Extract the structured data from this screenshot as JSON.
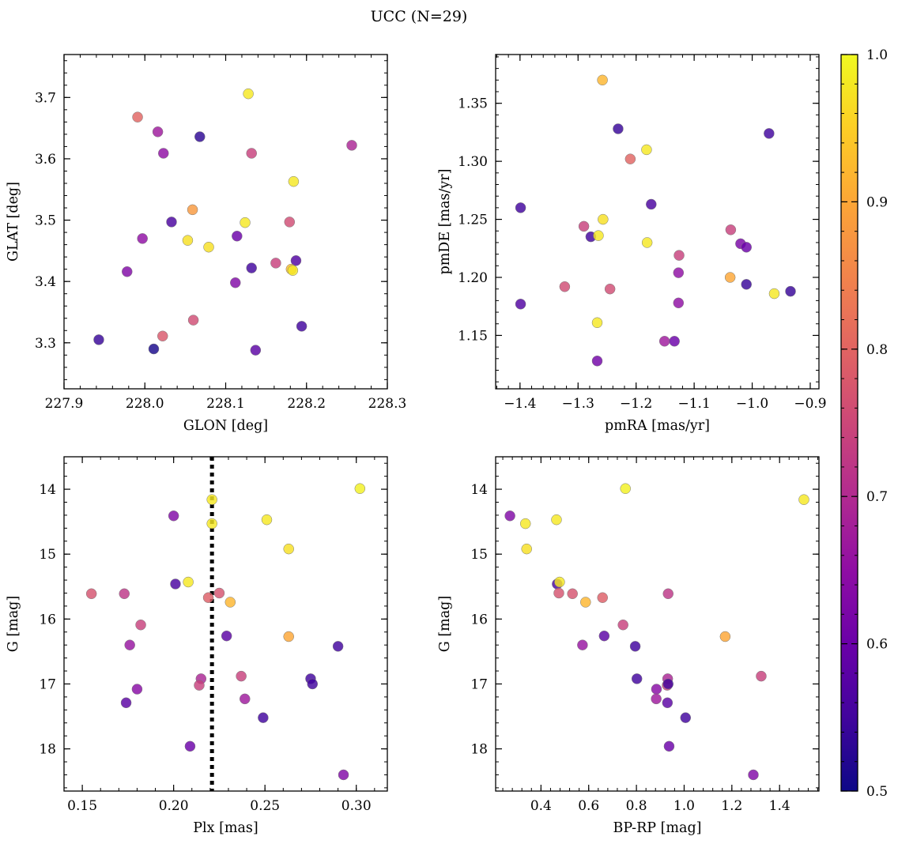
{
  "title": "UCC (N=29)",
  "colorbar": {
    "min": 0.5,
    "max": 1.0,
    "ticks": [
      0.5,
      0.6,
      0.7,
      0.8,
      0.9,
      1.0
    ],
    "tick_labels": [
      "0.5",
      "0.6",
      "0.7",
      "0.8",
      "0.9",
      "1.0"
    ],
    "colormap": "plasma"
  },
  "chart_data": [
    {
      "type": "scatter",
      "name": "GLON-GLAT",
      "xlabel": "GLON [deg]",
      "ylabel": "GLAT [deg]",
      "xlim": [
        227.9,
        228.3
      ],
      "ylim": [
        3.225,
        3.77
      ],
      "y_inverted": false,
      "xticks": [
        227.9,
        228.0,
        228.1,
        228.2,
        228.3
      ],
      "xtick_labels": [
        "227.9",
        "228.0",
        "228.1",
        "228.2",
        "228.3"
      ],
      "yticks": [
        3.3,
        3.4,
        3.5,
        3.6,
        3.7
      ],
      "ytick_labels": [
        "3.3",
        "3.4",
        "3.5",
        "3.6",
        "3.7"
      ],
      "x": [
        228.128,
        227.991,
        228.016,
        228.023,
        228.068,
        228.132,
        228.256,
        228.184,
        228.059,
        228.033,
        228.124,
        228.179,
        227.997,
        228.053,
        228.079,
        228.114,
        228.132,
        228.162,
        228.187,
        228.181,
        228.183,
        227.978,
        228.112,
        228.022,
        228.06,
        227.943,
        228.011,
        228.137,
        228.194
      ],
      "y": [
        3.706,
        3.668,
        3.644,
        3.609,
        3.636,
        3.609,
        3.622,
        3.563,
        3.517,
        3.497,
        3.496,
        3.497,
        3.47,
        3.467,
        3.456,
        3.474,
        3.422,
        3.43,
        3.434,
        3.42,
        3.418,
        3.416,
        3.398,
        3.311,
        3.337,
        3.305,
        3.29,
        3.288,
        3.327
      ],
      "c": [
        0.98,
        0.8,
        0.67,
        0.65,
        0.53,
        0.74,
        0.69,
        0.98,
        0.88,
        0.56,
        0.98,
        0.76,
        0.65,
        0.97,
        0.97,
        0.6,
        0.55,
        0.74,
        0.57,
        0.93,
        0.98,
        0.63,
        0.63,
        0.78,
        0.76,
        0.54,
        0.51,
        0.58,
        0.55
      ]
    },
    {
      "type": "scatter",
      "name": "pmRA-pmDE",
      "xlabel": "pmRA [mas/yr]",
      "ylabel": "pmDE [mas/yr]",
      "xlim": [
        -1.442,
        -0.885
      ],
      "ylim": [
        1.104,
        1.392
      ],
      "y_inverted": false,
      "xticks": [
        -1.4,
        -1.3,
        -1.2,
        -1.1,
        -1.0,
        -0.9
      ],
      "xtick_labels": [
        "−1.4",
        "−1.3",
        "−1.2",
        "−1.1",
        "−1.0",
        "−0.9"
      ],
      "yticks": [
        1.15,
        1.2,
        1.25,
        1.3,
        1.35
      ],
      "ytick_labels": [
        "1.15",
        "1.20",
        "1.25",
        "1.30",
        "1.35"
      ],
      "x": [
        -1.258,
        -1.231,
        -0.971,
        -1.182,
        -1.21,
        -1.399,
        -1.174,
        -1.257,
        -1.29,
        -1.278,
        -1.265,
        -1.181,
        -1.037,
        -1.02,
        -1.01,
        -1.126,
        -1.323,
        -1.245,
        -1.127,
        -1.038,
        -1.01,
        -0.962,
        -0.934,
        -1.399,
        -1.127,
        -1.267,
        -1.151,
        -1.134,
        -1.267
      ],
      "y": [
        1.37,
        1.328,
        1.324,
        1.31,
        1.302,
        1.26,
        1.263,
        1.25,
        1.244,
        1.235,
        1.236,
        1.23,
        1.241,
        1.229,
        1.226,
        1.219,
        1.192,
        1.19,
        1.204,
        1.2,
        1.194,
        1.186,
        1.188,
        1.177,
        1.178,
        1.161,
        1.145,
        1.145,
        1.128
      ],
      "c": [
        0.92,
        0.54,
        0.55,
        0.98,
        0.8,
        0.55,
        0.56,
        0.97,
        0.74,
        0.55,
        0.98,
        0.98,
        0.74,
        0.62,
        0.6,
        0.74,
        0.76,
        0.76,
        0.65,
        0.9,
        0.54,
        0.98,
        0.54,
        0.57,
        0.65,
        0.98,
        0.67,
        0.6,
        0.61
      ]
    },
    {
      "type": "scatter",
      "name": "Plx-G",
      "xlabel": "Plx [mas]",
      "ylabel": "G [mag]",
      "xlim": [
        0.14,
        0.317
      ],
      "ylim": [
        18.65,
        13.5
      ],
      "y_inverted": true,
      "xticks": [
        0.15,
        0.2,
        0.25,
        0.3
      ],
      "xtick_labels": [
        "0.15",
        "0.20",
        "0.25",
        "0.30"
      ],
      "yticks": [
        14,
        15,
        16,
        17,
        18
      ],
      "ytick_labels": [
        "14",
        "15",
        "16",
        "17",
        "18"
      ],
      "vline": {
        "x": 0.221,
        "style": "dotted"
      },
      "x": [
        0.302,
        0.221,
        0.221,
        0.2,
        0.251,
        0.263,
        0.208,
        0.201,
        0.155,
        0.173,
        0.225,
        0.219,
        0.231,
        0.182,
        0.263,
        0.229,
        0.176,
        0.29,
        0.215,
        0.214,
        0.237,
        0.275,
        0.276,
        0.18,
        0.239,
        0.174,
        0.249,
        0.209,
        0.293
      ],
      "y": [
        13.99,
        14.16,
        14.53,
        14.41,
        14.47,
        14.92,
        15.43,
        15.46,
        15.61,
        15.61,
        15.6,
        15.67,
        15.74,
        16.09,
        16.27,
        16.26,
        16.4,
        16.42,
        16.92,
        17.02,
        16.88,
        16.92,
        17.0,
        17.08,
        17.23,
        17.29,
        17.52,
        17.96,
        18.4
      ],
      "c": [
        0.99,
        0.98,
        0.98,
        0.63,
        0.98,
        0.97,
        0.98,
        0.56,
        0.77,
        0.72,
        0.77,
        0.79,
        0.92,
        0.74,
        0.9,
        0.58,
        0.66,
        0.55,
        0.69,
        0.74,
        0.74,
        0.55,
        0.55,
        0.64,
        0.67,
        0.58,
        0.55,
        0.6,
        0.63
      ]
    },
    {
      "type": "scatter",
      "name": "BPRP-G",
      "xlabel": "BP-RP [mag]",
      "ylabel": "G [mag]",
      "xlim": [
        0.21,
        1.565
      ],
      "ylim": [
        18.65,
        13.5
      ],
      "y_inverted": true,
      "xticks": [
        0.4,
        0.6,
        0.8,
        1.0,
        1.2,
        1.4
      ],
      "xtick_labels": [
        "0.4",
        "0.6",
        "0.8",
        "1.0",
        "1.2",
        "1.4"
      ],
      "yticks": [
        14,
        15,
        16,
        17,
        18
      ],
      "ytick_labels": [
        "14",
        "15",
        "16",
        "17",
        "18"
      ],
      "x": [
        0.754,
        1.502,
        0.27,
        0.335,
        0.465,
        0.34,
        0.468,
        0.478,
        0.475,
        0.532,
        0.587,
        0.658,
        0.933,
        0.744,
        1.172,
        0.665,
        0.574,
        0.795,
        0.802,
        0.931,
        1.323,
        0.929,
        0.884,
        0.883,
        0.93,
        1.006,
        0.937,
        1.29,
        0.933
      ],
      "y": [
        13.99,
        14.16,
        14.41,
        14.53,
        14.47,
        14.92,
        15.46,
        15.43,
        15.6,
        15.61,
        15.74,
        15.67,
        15.61,
        16.09,
        16.27,
        16.26,
        16.4,
        16.42,
        16.92,
        16.92,
        16.88,
        17.02,
        17.08,
        17.23,
        17.29,
        17.52,
        17.96,
        18.4,
        17.0
      ],
      "c": [
        0.99,
        0.98,
        0.63,
        0.98,
        0.98,
        0.97,
        0.56,
        0.98,
        0.77,
        0.77,
        0.92,
        0.79,
        0.72,
        0.74,
        0.9,
        0.58,
        0.66,
        0.55,
        0.55,
        0.69,
        0.74,
        0.74,
        0.64,
        0.67,
        0.58,
        0.55,
        0.6,
        0.63,
        0.55
      ]
    }
  ]
}
